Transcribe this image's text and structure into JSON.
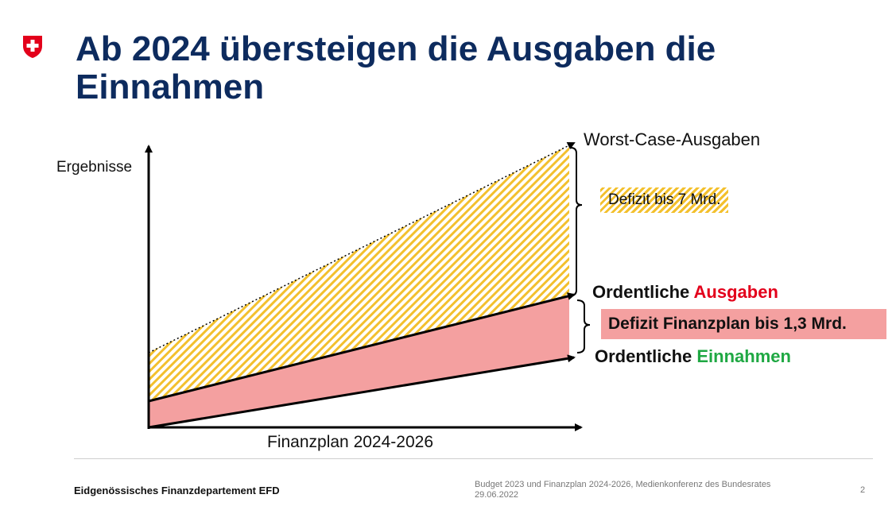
{
  "title_line1": "Ab 2024 übersteigen die Ausgaben die",
  "title_line2": "Einnahmen",
  "logo": {
    "icon": "swiss-cross-icon",
    "color": "#e3001b"
  },
  "diagram": {
    "y_axis_label": "Ergebnisse",
    "x_axis_label": "Finanzplan 2024-2026",
    "worst_case_label": "Worst-Case-Ausgaben",
    "deficit_worst_label": "Defizit bis 7 Mrd.",
    "ordentliche_ausgaben_prefix": "Ordentliche ",
    "ordentliche_ausgaben_highlight": "Ausgaben",
    "deficit_plan_label": "Defizit Finanzplan bis 1,3 Mrd.",
    "ordentliche_einnahmen_prefix": "Ordentliche ",
    "ordentliche_einnahmen_highlight": "Einnahmen",
    "colors": {
      "hatch": "#f3c02d",
      "deficit_fill": "#f4a0a0",
      "red_text": "#e3001b",
      "green_text": "#1fa843",
      "title": "#0d2b5e"
    }
  },
  "footer": {
    "department": "Eidgenössisches Finanzdepartement EFD",
    "event_line1": "Budget 2023 und Finanzplan 2024-2026, Medienkonferenz des Bundesrates",
    "event_line2": "29.06.2022",
    "page_number": "2"
  }
}
